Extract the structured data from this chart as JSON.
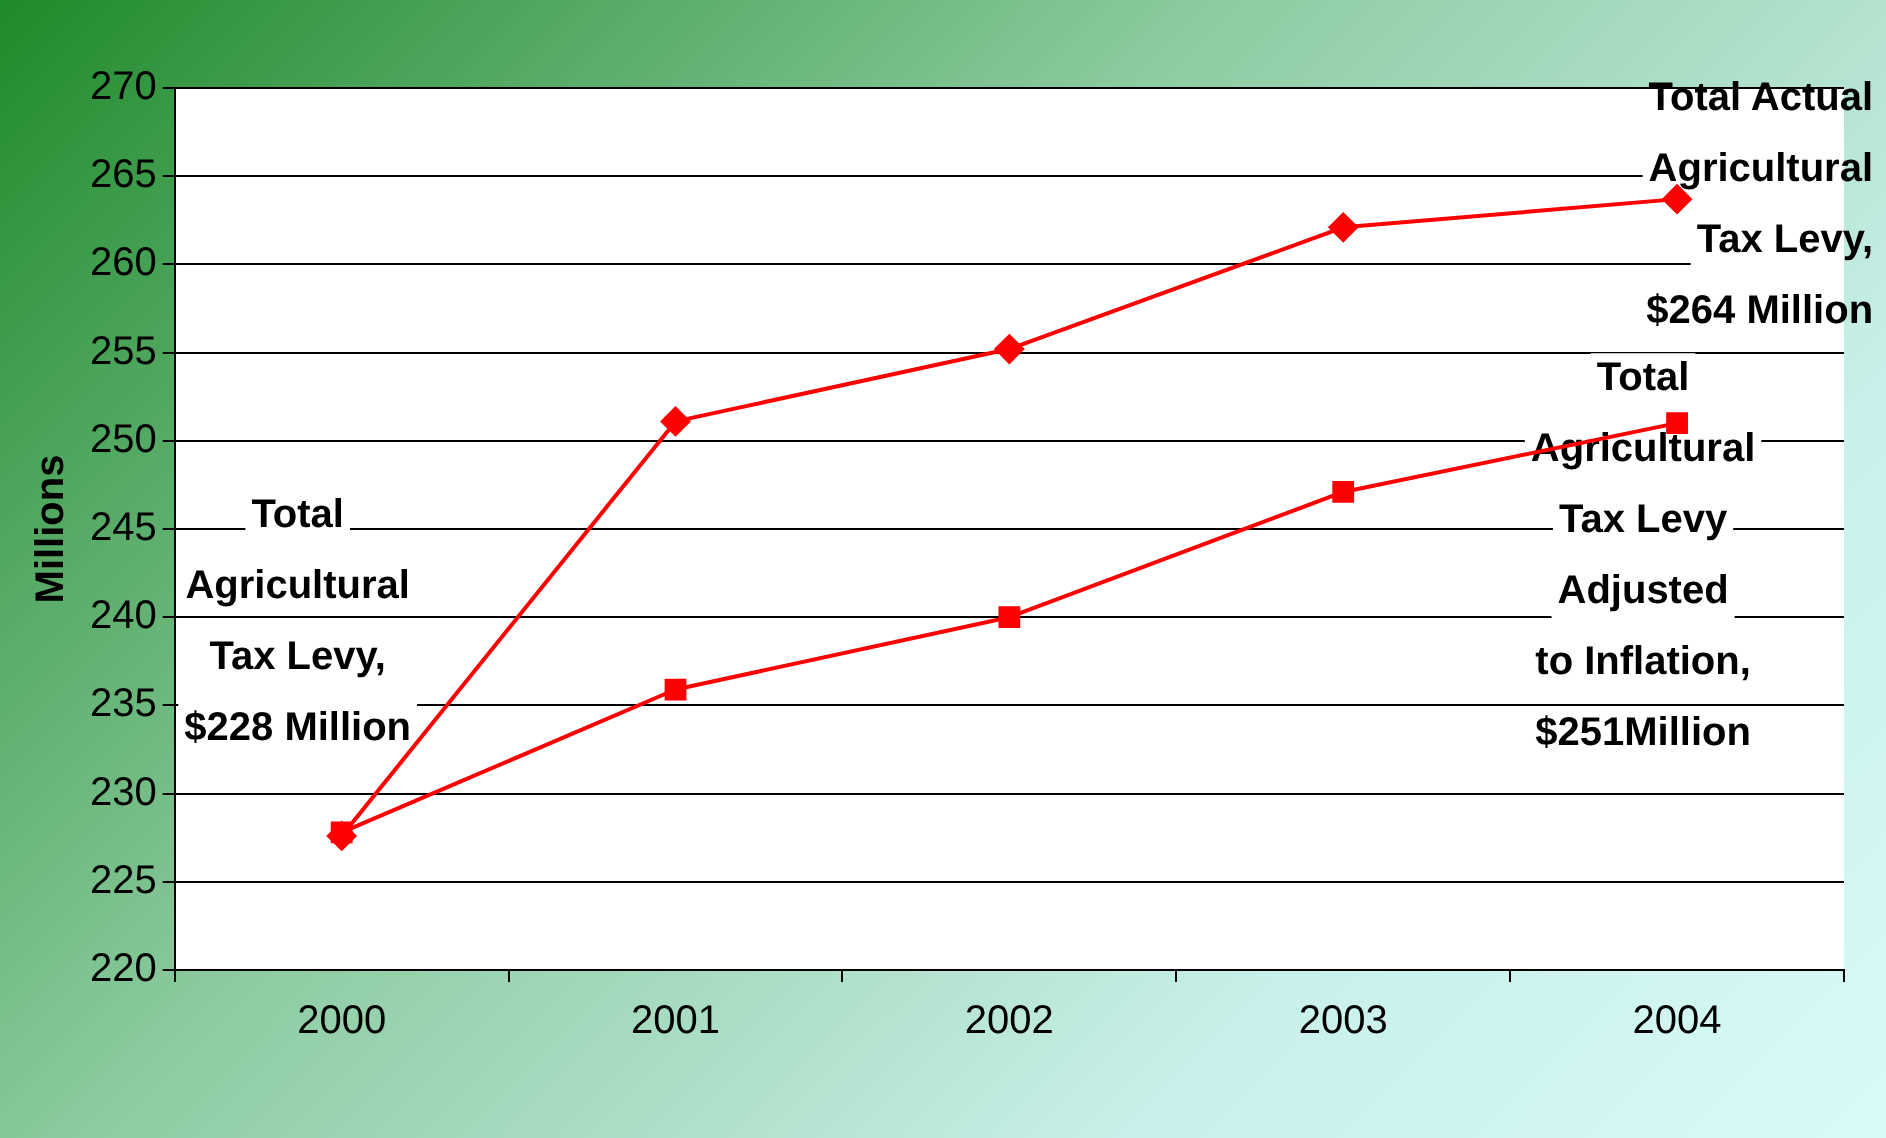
{
  "chart_data": {
    "type": "line",
    "ylabel": "Millions",
    "categories": [
      "2000",
      "2001",
      "2002",
      "2003",
      "2004"
    ],
    "series": [
      {
        "color": "#ff0000",
        "marker": "diamond",
        "values": [
          227.6,
          251.1,
          255.2,
          262.1,
          263.7
        ]
      },
      {
        "color": "#ff0000",
        "marker": "square",
        "values": [
          227.8,
          235.9,
          240.0,
          247.1,
          251.0
        ]
      }
    ],
    "ylim": [
      220,
      270
    ],
    "yticks": [
      220,
      225,
      230,
      235,
      240,
      245,
      250,
      255,
      260,
      265,
      270
    ],
    "grid": "y",
    "legend": false,
    "line_style": "solid",
    "annotations": [
      {
        "text": "Total\nAgricultural\nTax Levy,\n$228 Million",
        "x": "2000",
        "y": 227.8
      },
      {
        "text": "Total Actual\nAgricultural\nTax Levy,\n$264 Million",
        "x": "2004",
        "y": 263.7
      },
      {
        "text": "Total\nAgricultural\nTax Levy\nAdjusted\nto Inflation,\n$251Million",
        "x": "2004",
        "y": 251.0
      }
    ]
  }
}
